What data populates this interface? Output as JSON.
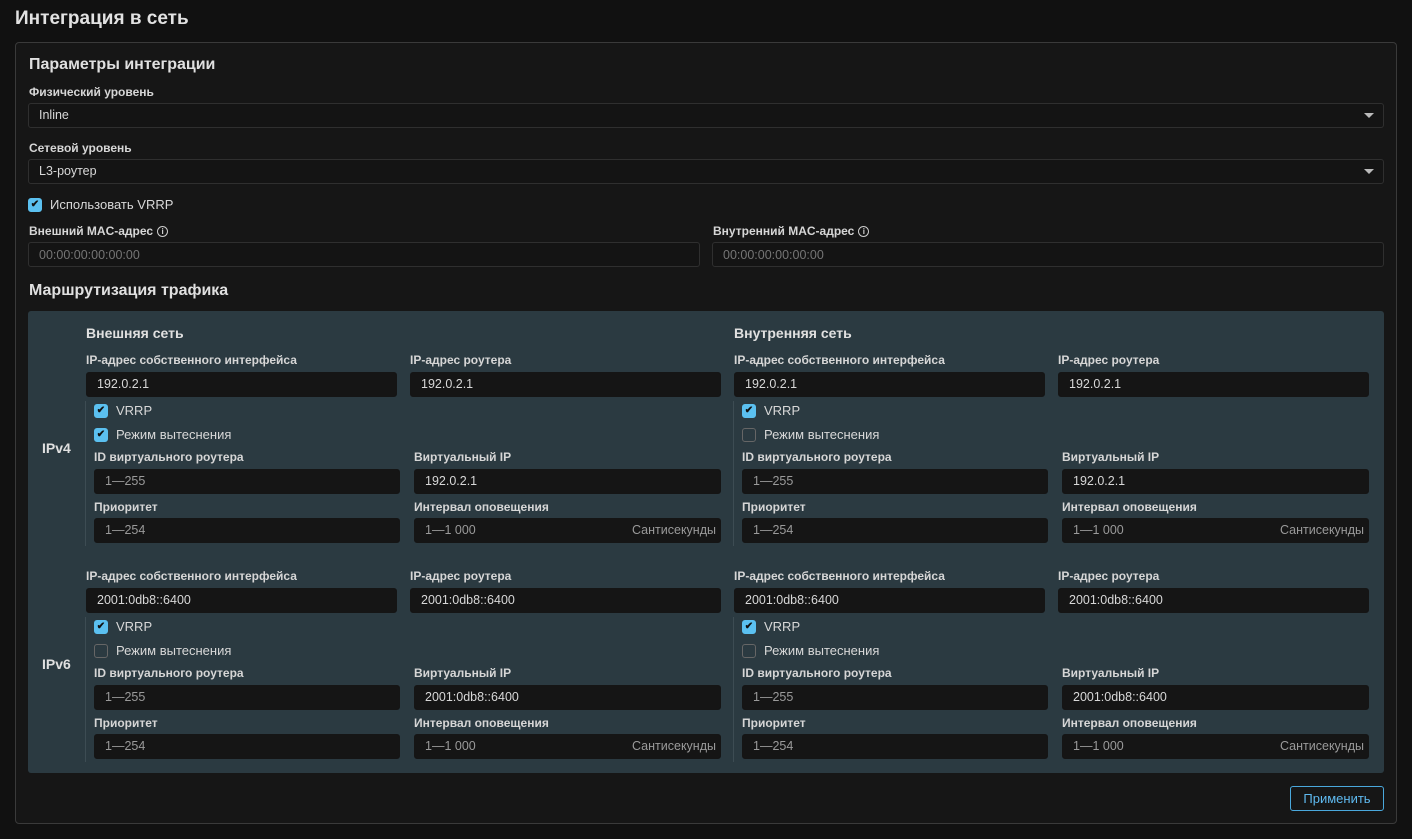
{
  "title": "Интеграция в сеть",
  "params": {
    "heading": "Параметры интеграции",
    "physical_label": "Физический уровень",
    "physical_value": "Inline",
    "network_label": "Сетевой уровень",
    "network_value": "L3-роутер",
    "use_vrrp_label": "Использовать VRRP",
    "use_vrrp_checked": true,
    "ext_mac_label": "Внешний MAC-адрес",
    "ext_mac_placeholder": "00:00:00:00:00:00",
    "int_mac_label": "Внутренний MAC-адрес",
    "int_mac_placeholder": "00:00:00:00:00:00"
  },
  "routing": {
    "heading": "Маршрутизация трафика",
    "external_heading": "Внешняя сеть",
    "internal_heading": "Внутренняя сеть",
    "labels": {
      "own_ip": "IP-адрес собственного интерфейса",
      "router_ip": "IP-адрес роутера",
      "vrrp": "VRRP",
      "preempt": "Режим вытеснения",
      "vrid": "ID виртуального роутера",
      "vip": "Виртуальный IP",
      "priority": "Приоритет",
      "interval": "Интервал оповещения",
      "interval_unit": "Сантисекунды"
    },
    "rows": [
      {
        "label": "IPv4",
        "blocks": [
          {
            "own_ip": "192.0.2.1",
            "router_ip": "192.0.2.1",
            "vrrp": true,
            "preempt": true,
            "vrid": "1—255",
            "vip": "192.0.2.1",
            "priority": "1—254",
            "interval": "1—1 000"
          },
          {
            "own_ip": "192.0.2.1",
            "router_ip": "192.0.2.1",
            "vrrp": true,
            "preempt": false,
            "vrid": "1—255",
            "vip": "192.0.2.1",
            "priority": "1—254",
            "interval": "1—1 000"
          }
        ]
      },
      {
        "label": "IPv6",
        "blocks": [
          {
            "own_ip": "2001:0db8::6400",
            "router_ip": "2001:0db8::6400",
            "vrrp": true,
            "preempt": false,
            "vrid": "1—255",
            "vip": "2001:0db8::6400",
            "priority": "1—254",
            "interval": "1—1 000"
          },
          {
            "own_ip": "2001:0db8::6400",
            "router_ip": "2001:0db8::6400",
            "vrrp": true,
            "preempt": false,
            "vrid": "1—255",
            "vip": "2001:0db8::6400",
            "priority": "1—254",
            "interval": "1—1 000"
          }
        ]
      }
    ]
  },
  "apply_label": "Применить",
  "colors": {
    "accent": "#5bc0f0",
    "panel": "#2b3a41"
  }
}
